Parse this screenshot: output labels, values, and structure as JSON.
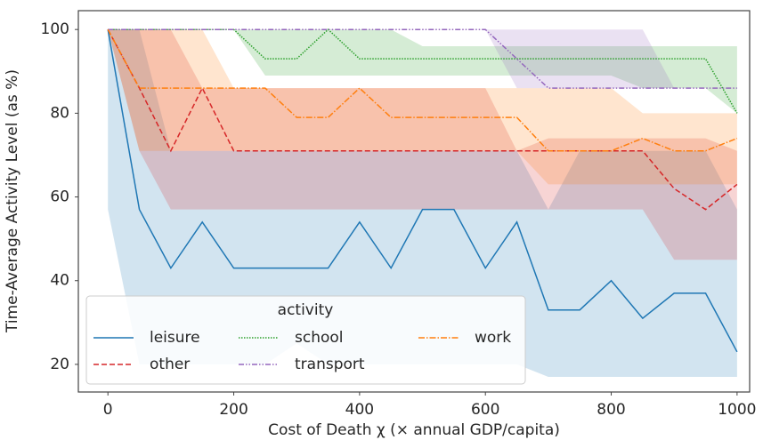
{
  "chart_data": {
    "type": "line",
    "xlabel": "Cost of Death χ (× annual GDP/capita)",
    "ylabel": "Time-Average Activity Level (as %)",
    "x": [
      0,
      50,
      100,
      150,
      200,
      250,
      300,
      350,
      400,
      450,
      500,
      550,
      600,
      650,
      700,
      750,
      800,
      850,
      900,
      950,
      1000
    ],
    "xlim": [
      -47,
      1020
    ],
    "xticks": [
      0,
      200,
      400,
      600,
      800,
      1000
    ],
    "ylim": [
      13.4,
      104.5
    ],
    "yticks": [
      20,
      40,
      60,
      80,
      100
    ],
    "legend_title": "activity",
    "series": [
      {
        "name": "leisure",
        "color": "#1f77b4",
        "dash": "none",
        "values": [
          100,
          57,
          43,
          54,
          43,
          43,
          43,
          43,
          54,
          43,
          57,
          57,
          43,
          54,
          33,
          33,
          40,
          31,
          37,
          37,
          23
        ],
        "lower": [
          57,
          20,
          20,
          20,
          20,
          20,
          25,
          20,
          20,
          20,
          20,
          20,
          20,
          20,
          17,
          17,
          17,
          17,
          17,
          17,
          17
        ],
        "upper": [
          100,
          100,
          71,
          71,
          71,
          71,
          71,
          71,
          71,
          71,
          71,
          71,
          71,
          71,
          57,
          71,
          71,
          71,
          71,
          71,
          57
        ]
      },
      {
        "name": "other",
        "color": "#d62728",
        "dash": "6,3",
        "values": [
          100,
          86,
          71,
          86,
          71,
          71,
          71,
          71,
          71,
          71,
          71,
          71,
          71,
          71,
          71,
          71,
          71,
          71,
          62,
          57,
          63
        ],
        "lower": [
          100,
          71,
          57,
          57,
          57,
          57,
          57,
          57,
          57,
          57,
          57,
          57,
          57,
          57,
          57,
          57,
          57,
          57,
          45,
          45,
          45
        ],
        "upper": [
          100,
          100,
          100,
          86,
          86,
          86,
          86,
          86,
          86,
          86,
          86,
          86,
          86,
          71,
          74,
          74,
          74,
          74,
          74,
          74,
          71
        ]
      },
      {
        "name": "school",
        "color": "#2ca02c",
        "dash": "1.5,1.5",
        "values": [
          100,
          100,
          100,
          100,
          100,
          93,
          93,
          100,
          93,
          93,
          93,
          93,
          93,
          93,
          93,
          93,
          93,
          93,
          93,
          93,
          80
        ],
        "lower": [
          100,
          100,
          100,
          100,
          100,
          89,
          89,
          89,
          89,
          89,
          89,
          89,
          89,
          89,
          89,
          89,
          89,
          86,
          86,
          86,
          80
        ],
        "upper": [
          100,
          100,
          100,
          100,
          100,
          100,
          100,
          100,
          100,
          100,
          96,
          96,
          96,
          96,
          96,
          96,
          96,
          96,
          96,
          96,
          96
        ]
      },
      {
        "name": "transport",
        "color": "#9467bd",
        "dash": "6,2,1.5,2,1.5,2",
        "values": [
          100,
          100,
          100,
          100,
          100,
          100,
          100,
          100,
          100,
          100,
          100,
          100,
          100,
          93,
          86,
          86,
          86,
          86,
          86,
          86,
          86
        ],
        "lower": [
          100,
          100,
          100,
          100,
          100,
          100,
          100,
          100,
          100,
          100,
          100,
          100,
          100,
          86,
          86,
          86,
          86,
          86,
          86,
          86,
          86
        ],
        "upper": [
          100,
          100,
          100,
          100,
          100,
          100,
          100,
          100,
          100,
          100,
          100,
          100,
          100,
          100,
          100,
          100,
          100,
          100,
          86,
          86,
          86
        ]
      },
      {
        "name": "work",
        "color": "#ff7f0e",
        "dash": "7,2,1.5,2",
        "values": [
          100,
          86,
          86,
          86,
          86,
          86,
          79,
          79,
          86,
          79,
          79,
          79,
          79,
          79,
          71,
          71,
          71,
          74,
          71,
          71,
          74
        ],
        "lower": [
          100,
          71,
          71,
          71,
          71,
          71,
          71,
          71,
          71,
          71,
          71,
          71,
          71,
          71,
          63,
          63,
          63,
          63,
          63,
          63,
          63
        ],
        "upper": [
          100,
          100,
          100,
          100,
          86,
          86,
          86,
          86,
          86,
          86,
          86,
          86,
          86,
          86,
          86,
          86,
          86,
          80,
          80,
          80,
          80
        ]
      }
    ]
  }
}
